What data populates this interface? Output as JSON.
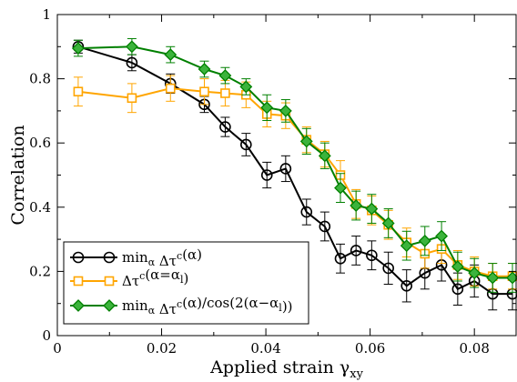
{
  "chart_data": {
    "type": "line",
    "xlabel": "Applied strain",
    "xlabel_symbol": "γ",
    "xlabel_sub": "xy",
    "ylabel": "Correlation",
    "xlim": [
      0,
      0.088
    ],
    "ylim": [
      0,
      1
    ],
    "x_ticks": [
      0,
      0.02,
      0.04,
      0.06,
      0.08
    ],
    "x_tick_labels": [
      "0",
      "0.02",
      "0.04",
      "0.06",
      "0.08"
    ],
    "y_ticks": [
      0,
      0.2,
      0.4,
      0.6,
      0.8,
      1
    ],
    "y_tick_labels": [
      "0",
      "0.2",
      "0.4",
      "0.6",
      "0.8",
      "1"
    ],
    "grid": false,
    "legend_position": "bottom-left",
    "series": [
      {
        "name": "min_α Δτ^c(α)",
        "legend": [
          {
            "t": "min"
          },
          {
            "t": "α",
            "sub": true
          },
          {
            "t": " Δτ"
          },
          {
            "t": "c",
            "sup": true
          },
          {
            "t": "(α)"
          }
        ],
        "color": "#000000",
        "fill": "none",
        "marker": "circle",
        "x": [
          0.004,
          0.0143,
          0.0217,
          0.0282,
          0.0322,
          0.0362,
          0.0402,
          0.0438,
          0.0478,
          0.0513,
          0.0543,
          0.0573,
          0.0603,
          0.0635,
          0.067,
          0.0705,
          0.0737,
          0.0768,
          0.08,
          0.0835,
          0.0873
        ],
        "y": [
          0.9,
          0.85,
          0.785,
          0.72,
          0.65,
          0.595,
          0.5,
          0.52,
          0.385,
          0.34,
          0.24,
          0.265,
          0.25,
          0.21,
          0.155,
          0.195,
          0.22,
          0.145,
          0.17,
          0.13,
          0.13
        ],
        "err": [
          0.02,
          0.025,
          0.03,
          0.025,
          0.03,
          0.035,
          0.04,
          0.04,
          0.04,
          0.045,
          0.045,
          0.045,
          0.045,
          0.05,
          0.05,
          0.05,
          0.05,
          0.05,
          0.05,
          0.05,
          0.05
        ]
      },
      {
        "name": "Δτ^c(α=α_l)",
        "legend": [
          {
            "t": "Δτ"
          },
          {
            "t": "c",
            "sup": true
          },
          {
            "t": "(α=α"
          },
          {
            "t": "l",
            "sub": true
          },
          {
            "t": ")"
          }
        ],
        "color": "#ffa500",
        "fill": "none",
        "marker": "square",
        "x": [
          0.004,
          0.0143,
          0.0217,
          0.0282,
          0.0322,
          0.0362,
          0.0402,
          0.0438,
          0.0478,
          0.0513,
          0.0543,
          0.0573,
          0.0603,
          0.0635,
          0.067,
          0.0705,
          0.0737,
          0.0768,
          0.08,
          0.0835,
          0.0873
        ],
        "y": [
          0.76,
          0.74,
          0.77,
          0.76,
          0.755,
          0.75,
          0.69,
          0.685,
          0.61,
          0.565,
          0.5,
          0.41,
          0.39,
          0.345,
          0.29,
          0.255,
          0.27,
          0.22,
          0.2,
          0.185,
          0.185
        ],
        "err": [
          0.045,
          0.045,
          0.04,
          0.04,
          0.04,
          0.04,
          0.04,
          0.04,
          0.04,
          0.04,
          0.045,
          0.045,
          0.045,
          0.045,
          0.045,
          0.045,
          0.045,
          0.045,
          0.045,
          0.04,
          0.04
        ]
      },
      {
        "name": "min_α Δτ^c(α)/cos(2(α−α_l))",
        "legend": [
          {
            "t": "min"
          },
          {
            "t": "α",
            "sub": true
          },
          {
            "t": " Δτ"
          },
          {
            "t": "c",
            "sup": true
          },
          {
            "t": "(α)/cos(2(α−α"
          },
          {
            "t": "l",
            "sub": true
          },
          {
            "t": "))"
          }
        ],
        "color": "#008000",
        "fill": "#3cb33c",
        "marker": "diamond",
        "x": [
          0.004,
          0.0143,
          0.0217,
          0.0282,
          0.0322,
          0.0362,
          0.0402,
          0.0438,
          0.0478,
          0.0513,
          0.0543,
          0.0573,
          0.0603,
          0.0635,
          0.067,
          0.0705,
          0.0737,
          0.0768,
          0.08,
          0.0835,
          0.0873
        ],
        "y": [
          0.895,
          0.9,
          0.875,
          0.83,
          0.81,
          0.775,
          0.71,
          0.7,
          0.605,
          0.56,
          0.46,
          0.405,
          0.395,
          0.35,
          0.28,
          0.295,
          0.31,
          0.215,
          0.195,
          0.18,
          0.18
        ],
        "err": [
          0.025,
          0.025,
          0.025,
          0.025,
          0.025,
          0.025,
          0.04,
          0.035,
          0.04,
          0.04,
          0.045,
          0.045,
          0.045,
          0.045,
          0.045,
          0.045,
          0.045,
          0.045,
          0.045,
          0.045,
          0.045
        ]
      }
    ]
  }
}
